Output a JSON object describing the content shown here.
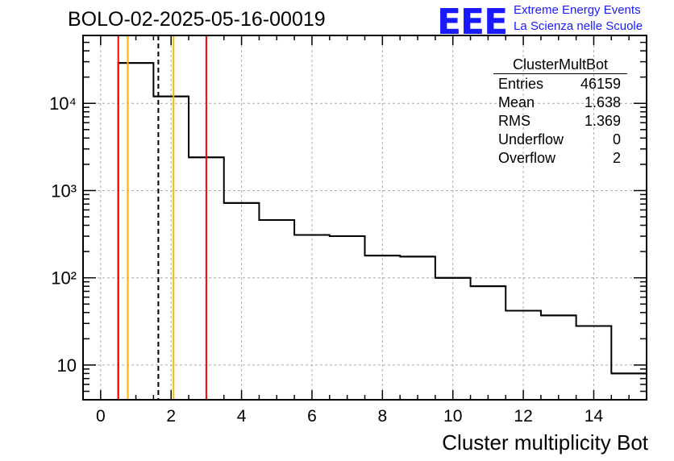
{
  "header": {
    "run_title": "BOLO-02-2025-05-16-00019",
    "logo_text": "EEE",
    "logo_line1": "Extreme Energy Events",
    "logo_line2": "La Scienza nelle Scuole"
  },
  "stats_box": {
    "title": "ClusterMultBot",
    "rows": [
      {
        "label": "Entries",
        "value": "46159"
      },
      {
        "label": "Mean",
        "value": "1.638"
      },
      {
        "label": "RMS",
        "value": "1.369"
      },
      {
        "label": "Underflow",
        "value": "0"
      },
      {
        "label": "Overflow",
        "value": "2"
      }
    ]
  },
  "chart_data": {
    "type": "histogram",
    "title": "BOLO-02-2025-05-16-00019",
    "xlabel": "Cluster multiplicity Bot",
    "ylabel": "",
    "xlim": [
      -0.5,
      15.5
    ],
    "ylim": [
      4,
      60000
    ],
    "yscale": "log",
    "grid": true,
    "bin_edges": [
      0.5,
      1.5,
      2.5,
      3.5,
      4.5,
      5.5,
      6.5,
      7.5,
      8.5,
      9.5,
      10.5,
      11.5,
      12.5,
      13.5,
      14.5,
      15.5
    ],
    "values": [
      29000,
      12000,
      2400,
      720,
      460,
      310,
      300,
      180,
      175,
      100,
      80,
      42,
      37,
      28,
      8
    ],
    "x_ticks": [
      0,
      2,
      4,
      6,
      8,
      10,
      12,
      14
    ],
    "y_ticks": [
      {
        "value": 10,
        "label": "10"
      },
      {
        "value": 100,
        "label": "10²"
      },
      {
        "value": 1000,
        "label": "10³"
      },
      {
        "value": 10000,
        "label": "10⁴"
      }
    ],
    "vertical_lines": [
      {
        "x": 0.5,
        "color": "#ff0000",
        "style": "solid"
      },
      {
        "x": 0.77,
        "color": "#ffb300",
        "style": "solid"
      },
      {
        "x": 1.638,
        "color": "#000000",
        "style": "dashed"
      },
      {
        "x": 2.07,
        "color": "#ffb300",
        "style": "solid"
      },
      {
        "x": 3.0,
        "color": "#ff0000",
        "style": "solid"
      }
    ],
    "series_color": "#000000"
  }
}
